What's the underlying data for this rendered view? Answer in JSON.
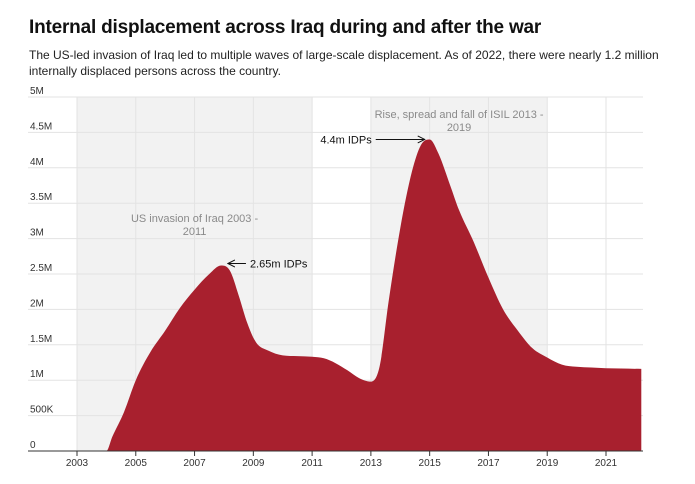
{
  "title": "Internal displacement across Iraq during and after the war",
  "subtitle": "The US-led invasion of Iraq led to multiple waves of large-scale displacement. As of 2022, there were nearly 1.2 million internally displaced persons across the country.",
  "colors": {
    "area": "#a8202e",
    "band": "#f2f2f2",
    "grid": "#e3e3e3",
    "axis": "#333333"
  },
  "chart_data": {
    "type": "area",
    "title": "Internal displacement across Iraq during and after the war",
    "xlabel": "",
    "ylabel": "",
    "xlim": [
      2001.8,
      2022.5
    ],
    "ylim": [
      0,
      5000000
    ],
    "x": [
      2003.0,
      2003.5,
      2004.0,
      2004.2,
      2004.6,
      2005.0,
      2005.5,
      2006.0,
      2006.5,
      2007.0,
      2007.5,
      2007.9,
      2008.2,
      2008.5,
      2008.8,
      2009.1,
      2009.5,
      2010.0,
      2010.5,
      2011.0,
      2011.4,
      2011.8,
      2012.2,
      2012.6,
      2013.0,
      2013.3,
      2013.6,
      2014.0,
      2014.4,
      2014.7,
      2015.0,
      2015.3,
      2015.7,
      2016.0,
      2016.5,
      2017.0,
      2017.5,
      2018.0,
      2018.5,
      2019.0,
      2019.5,
      2020.0,
      2020.5,
      2021.0,
      2021.5,
      2022.2
    ],
    "values": [
      0,
      0,
      0,
      200000,
      550000,
      1000000,
      1400000,
      1700000,
      2020000,
      2280000,
      2500000,
      2620000,
      2550000,
      2200000,
      1800000,
      1530000,
      1420000,
      1350000,
      1340000,
      1330000,
      1310000,
      1240000,
      1140000,
      1030000,
      980000,
      1200000,
      2100000,
      3150000,
      3950000,
      4320000,
      4400000,
      4200000,
      3750000,
      3400000,
      2950000,
      2450000,
      2000000,
      1700000,
      1450000,
      1320000,
      1220000,
      1190000,
      1180000,
      1170000,
      1165000,
      1160000
    ],
    "yticks": [
      0,
      500000,
      1000000,
      1500000,
      2000000,
      2500000,
      3000000,
      3500000,
      4000000,
      4500000,
      5000000
    ],
    "ytick_labels": [
      "0",
      "500K",
      "1M",
      "1.5M",
      "2M",
      "2.5M",
      "3M",
      "3.5M",
      "4M",
      "4.5M",
      "5M"
    ],
    "xticks": [
      2003,
      2005,
      2007,
      2009,
      2011,
      2013,
      2015,
      2017,
      2019,
      2021
    ],
    "xtick_labels": [
      "2003",
      "2005",
      "2007",
      "2009",
      "2011",
      "2013",
      "2015",
      "2017",
      "2019",
      "2021"
    ],
    "bands": [
      {
        "start": 2003,
        "end": 2011,
        "label_line1": "US invasion of Iraq 2003 -",
        "label_line2": "2011"
      },
      {
        "start": 2013,
        "end": 2019,
        "label_line1": "Rise, spread and fall of ISIL 2013 -",
        "label_line2": "2019"
      }
    ],
    "annotations": [
      {
        "text": "2.65m IDPs",
        "x": 2008.0,
        "y": 2620000
      },
      {
        "text": "4.4m IDPs",
        "x": 2014.9,
        "y": 4400000
      }
    ]
  }
}
